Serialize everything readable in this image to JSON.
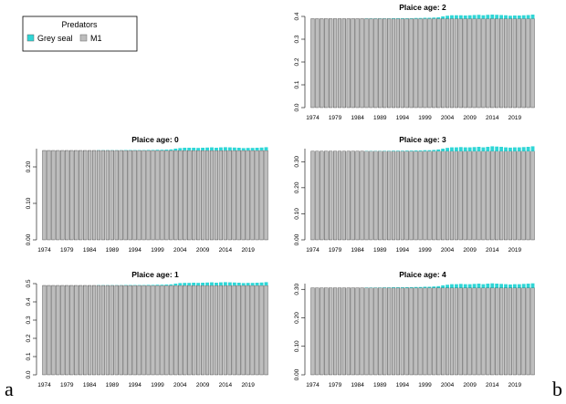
{
  "legend": {
    "title": "Predators",
    "entries": [
      {
        "label": "Grey seal",
        "color": "#2fd6d6"
      },
      {
        "label": "M1",
        "color": "#bdbdbd"
      }
    ]
  },
  "panel_letters": {
    "left": "a",
    "right": "b"
  },
  "colors": {
    "m1": "#bdbdbd",
    "seal": "#2fd6d6",
    "bar_border": "#000000",
    "axis": "#000000"
  },
  "chart_data": [
    {
      "id": "age2",
      "type": "bar",
      "stacked": true,
      "title": "Plaice age: 2",
      "first_year": 1974,
      "last_year": 2023,
      "xtick_labels": [
        "1974",
        "1979",
        "1984",
        "1989",
        "1994",
        "1999",
        "2004",
        "2009",
        "2014",
        "2019"
      ],
      "ylim": [
        0,
        0.4
      ],
      "ytick_labels": [
        "0.0",
        "0.1",
        "0.2",
        "0.3",
        "0.4"
      ],
      "series": [
        {
          "name": "M1",
          "constant": 0.39
        },
        {
          "name": "Grey seal",
          "values": [
            0,
            0,
            0,
            0,
            0,
            0,
            0,
            0,
            0,
            0,
            0,
            0,
            0.001,
            0.001,
            0.001,
            0.001,
            0.001,
            0.001,
            0.002,
            0.002,
            0.002,
            0.002,
            0.002,
            0.003,
            0.003,
            0.004,
            0.004,
            0.005,
            0.006,
            0.01,
            0.013,
            0.015,
            0.015,
            0.015,
            0.014,
            0.015,
            0.016,
            0.017,
            0.015,
            0.017,
            0.018,
            0.017,
            0.016,
            0.015,
            0.013,
            0.014,
            0.014,
            0.015,
            0.016,
            0.018
          ]
        }
      ]
    },
    {
      "id": "age0",
      "type": "bar",
      "stacked": true,
      "title": "Plaice age: 0",
      "first_year": 1974,
      "last_year": 2023,
      "xtick_labels": [
        "1974",
        "1979",
        "1984",
        "1989",
        "1994",
        "1999",
        "2004",
        "2009",
        "2014",
        "2019"
      ],
      "ylim": [
        0,
        0.25
      ],
      "ytick_labels": [
        "0.00",
        "0.10",
        "0.20"
      ],
      "series": [
        {
          "name": "M1",
          "constant": 0.245
        },
        {
          "name": "Grey seal",
          "values": [
            0,
            0,
            0,
            0,
            0,
            0,
            0,
            0,
            0,
            0,
            0,
            0,
            0.0005,
            0.0005,
            0.0005,
            0.0005,
            0.0005,
            0.0005,
            0.001,
            0.001,
            0.001,
            0.001,
            0.001,
            0.0015,
            0.0015,
            0.002,
            0.002,
            0.0025,
            0.003,
            0.005,
            0.0065,
            0.0075,
            0.0075,
            0.0075,
            0.007,
            0.0075,
            0.008,
            0.0085,
            0.0075,
            0.0085,
            0.009,
            0.0085,
            0.008,
            0.0075,
            0.0065,
            0.007,
            0.007,
            0.0075,
            0.008,
            0.009
          ]
        }
      ]
    },
    {
      "id": "age3",
      "type": "bar",
      "stacked": true,
      "title": "Plaice age: 3",
      "first_year": 1974,
      "last_year": 2023,
      "xtick_labels": [
        "1974",
        "1979",
        "1984",
        "1989",
        "1994",
        "1999",
        "2004",
        "2009",
        "2014",
        "2019"
      ],
      "ylim": [
        0,
        0.35
      ],
      "ytick_labels": [
        "0.00",
        "0.10",
        "0.20",
        "0.30"
      ],
      "series": [
        {
          "name": "M1",
          "constant": 0.34
        },
        {
          "name": "Grey seal",
          "values": [
            0,
            0,
            0,
            0,
            0,
            0,
            0,
            0,
            0,
            0,
            0,
            0,
            0.001,
            0.001,
            0.001,
            0.001,
            0.0015,
            0.0015,
            0.002,
            0.002,
            0.002,
            0.0025,
            0.0025,
            0.003,
            0.003,
            0.004,
            0.004,
            0.005,
            0.007,
            0.01,
            0.013,
            0.015,
            0.015,
            0.016,
            0.015,
            0.015,
            0.016,
            0.017,
            0.015,
            0.017,
            0.019,
            0.018,
            0.017,
            0.015,
            0.014,
            0.015,
            0.015,
            0.016,
            0.017,
            0.019
          ]
        }
      ]
    },
    {
      "id": "age1",
      "type": "bar",
      "stacked": true,
      "title": "Plaice age: 1",
      "first_year": 1974,
      "last_year": 2023,
      "xtick_labels": [
        "1974",
        "1979",
        "1984",
        "1989",
        "1994",
        "1999",
        "2004",
        "2009",
        "2014",
        "2019"
      ],
      "ylim": [
        0,
        0.5
      ],
      "ytick_labels": [
        "0.0",
        "0.1",
        "0.2",
        "0.3",
        "0.4",
        "0.5"
      ],
      "series": [
        {
          "name": "M1",
          "constant": 0.49
        },
        {
          "name": "Grey seal",
          "values": [
            0,
            0,
            0,
            0,
            0,
            0,
            0,
            0,
            0,
            0,
            0,
            0,
            0.001,
            0.001,
            0.001,
            0.001,
            0.001,
            0.001,
            0.002,
            0.002,
            0.002,
            0.002,
            0.002,
            0.003,
            0.003,
            0.004,
            0.004,
            0.005,
            0.006,
            0.01,
            0.013,
            0.014,
            0.014,
            0.015,
            0.014,
            0.015,
            0.016,
            0.017,
            0.015,
            0.017,
            0.018,
            0.017,
            0.016,
            0.015,
            0.013,
            0.014,
            0.014,
            0.015,
            0.016,
            0.018
          ]
        }
      ]
    },
    {
      "id": "age4",
      "type": "bar",
      "stacked": true,
      "title": "Plaice age: 4",
      "first_year": 1974,
      "last_year": 2023,
      "xtick_labels": [
        "1974",
        "1979",
        "1984",
        "1989",
        "1994",
        "1999",
        "2004",
        "2009",
        "2014",
        "2019"
      ],
      "ylim": [
        0,
        0.32
      ],
      "ytick_labels": [
        "0.00",
        "0.10",
        "0.20",
        "0.30"
      ],
      "series": [
        {
          "name": "M1",
          "constant": 0.305
        },
        {
          "name": "Grey seal",
          "values": [
            0,
            0,
            0,
            0,
            0,
            0,
            0,
            0,
            0,
            0,
            0,
            0,
            0.001,
            0.001,
            0.001,
            0.001,
            0.0015,
            0.0015,
            0.002,
            0.002,
            0.002,
            0.0025,
            0.0025,
            0.003,
            0.003,
            0.004,
            0.004,
            0.005,
            0.006,
            0.009,
            0.011,
            0.013,
            0.013,
            0.014,
            0.013,
            0.013,
            0.014,
            0.015,
            0.013,
            0.015,
            0.016,
            0.015,
            0.014,
            0.013,
            0.012,
            0.013,
            0.013,
            0.014,
            0.015,
            0.016
          ]
        }
      ]
    }
  ]
}
